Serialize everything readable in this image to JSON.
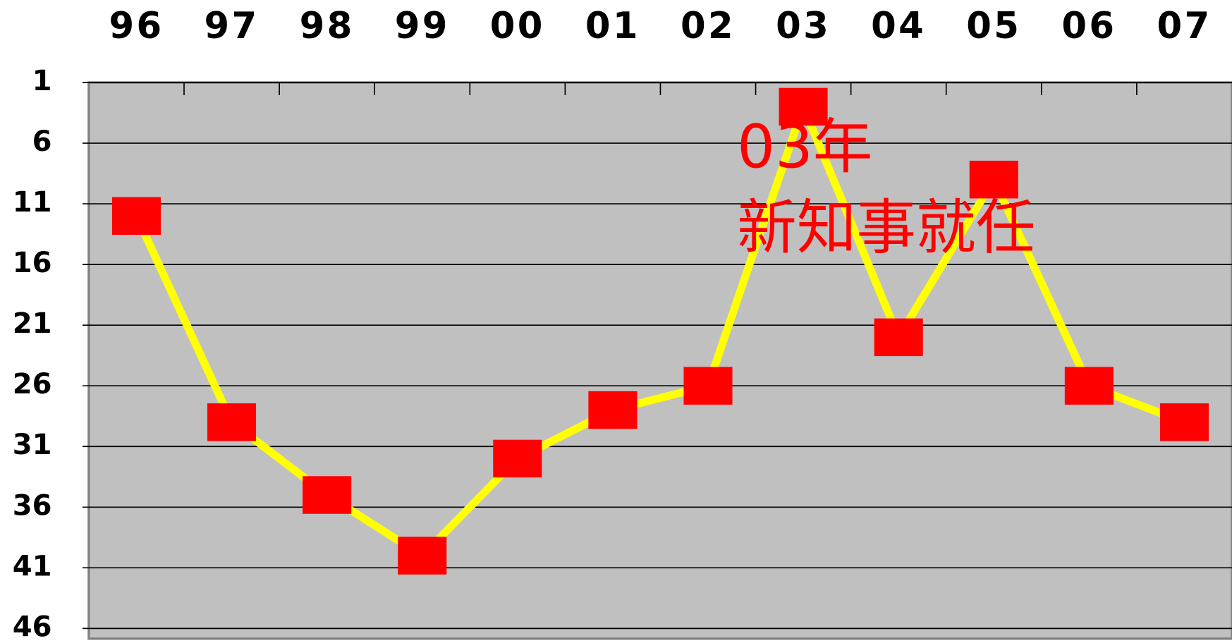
{
  "chart_data": {
    "type": "line",
    "categories": [
      "96",
      "97",
      "98",
      "99",
      "00",
      "01",
      "02",
      "03",
      "04",
      "05",
      "06",
      "07"
    ],
    "series": [
      {
        "color": "#ffff00",
        "marker_color": "#ff0000",
        "values": [
          12,
          29,
          35,
          40,
          32,
          28,
          26,
          3,
          22,
          9,
          26,
          29
        ]
      }
    ],
    "ylim": [
      1,
      46
    ],
    "yticks": [
      1,
      6,
      11,
      16,
      21,
      26,
      31,
      36,
      41,
      46
    ],
    "y_inverted": true,
    "grid": true,
    "annotation": [
      "03年",
      "新知事就任"
    ]
  }
}
